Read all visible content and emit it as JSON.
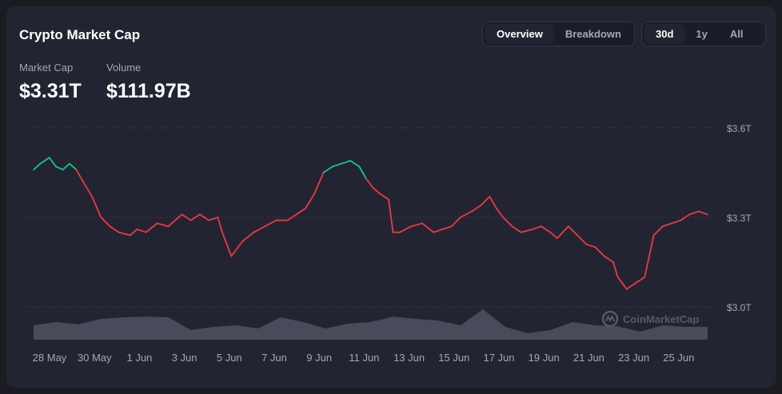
{
  "header": {
    "title": "Crypto Market Cap"
  },
  "metrics": [
    {
      "label": "Market Cap",
      "value": "$3.31T"
    },
    {
      "label": "Volume",
      "value": "$111.97B"
    }
  ],
  "view_tabs": {
    "overview": "Overview",
    "breakdown": "Breakdown",
    "active": "Overview"
  },
  "range_tabs": {
    "d30": "30d",
    "y1": "1y",
    "all": "All",
    "active": "30d"
  },
  "watermark": {
    "text": "CoinMarketCap",
    "icon": "coinmarketcap-logo-icon"
  },
  "colors": {
    "up": "#16c784",
    "down": "#ea3943",
    "volume": "#4e5261",
    "background": "#222531"
  },
  "chart_data": {
    "type": "line",
    "title": "",
    "xlabel": "",
    "ylabel": "",
    "y_axis": {
      "ticks": [
        "$3.6T",
        "$3.3T",
        "$3.0T"
      ],
      "tick_values": [
        3.6,
        3.3,
        3.0
      ],
      "range": [
        2.95,
        3.65
      ],
      "position": "right",
      "grid": "dotted"
    },
    "x_axis": {
      "ticks": [
        "28 May",
        "30 May",
        "1 Jun",
        "3 Jun",
        "5 Jun",
        "7 Jun",
        "9 Jun",
        "11 Jun",
        "13 Jun",
        "15 Jun",
        "17 Jun",
        "19 Jun",
        "21 Jun",
        "23 Jun",
        "25 Jun"
      ],
      "tick_days": [
        0,
        2,
        4,
        6,
        8,
        10,
        12,
        14,
        16,
        18,
        20,
        22,
        24,
        26,
        28
      ]
    },
    "baseline": 3.45,
    "series": [
      {
        "x": [
          0,
          0.3,
          0.7,
          1.0,
          1.3,
          1.6,
          1.9,
          2.2,
          2.6,
          3.0,
          3.4,
          3.8,
          4.3,
          4.6,
          5.0,
          5.5,
          6.0,
          6.6,
          7.0,
          7.4,
          7.8,
          8.2,
          8.4,
          8.8,
          9.3,
          9.8,
          10.3,
          10.8,
          11.3,
          11.7,
          12.1,
          12.5,
          12.9,
          13.3,
          13.7,
          14.1,
          14.5,
          14.8,
          15.1,
          15.4,
          15.8,
          16.0,
          16.3,
          16.8,
          17.3,
          17.8,
          18.2,
          18.6,
          19.0,
          19.5,
          19.9,
          20.3,
          20.6,
          20.9,
          21.3,
          21.7,
          22.2,
          22.6,
          23.0,
          23.3,
          23.8,
          24.2,
          24.6,
          25.0,
          25.4,
          25.8,
          26.0,
          26.4,
          26.8,
          27.2,
          27.6,
          28.0,
          28.4,
          28.8,
          29.2,
          29.6,
          30.0
        ],
        "y": [
          3.46,
          3.48,
          3.5,
          3.47,
          3.46,
          3.48,
          3.46,
          3.42,
          3.37,
          3.3,
          3.27,
          3.25,
          3.24,
          3.26,
          3.25,
          3.28,
          3.27,
          3.31,
          3.29,
          3.31,
          3.29,
          3.3,
          3.25,
          3.17,
          3.22,
          3.25,
          3.27,
          3.29,
          3.29,
          3.31,
          3.33,
          3.38,
          3.45,
          3.47,
          3.48,
          3.49,
          3.47,
          3.43,
          3.4,
          3.38,
          3.36,
          3.25,
          3.25,
          3.27,
          3.28,
          3.25,
          3.26,
          3.27,
          3.3,
          3.32,
          3.34,
          3.37,
          3.33,
          3.3,
          3.27,
          3.25,
          3.26,
          3.27,
          3.25,
          3.23,
          3.27,
          3.24,
          3.21,
          3.2,
          3.17,
          3.15,
          3.1,
          3.06,
          3.08,
          3.1,
          3.24,
          3.27,
          3.28,
          3.29,
          3.31,
          3.32,
          3.31
        ]
      },
      {
        "name": "Volume",
        "x": [
          0,
          1,
          2,
          3,
          4,
          5,
          6,
          7,
          8,
          9,
          10,
          11,
          12,
          13,
          14,
          15,
          16,
          17,
          18,
          19,
          20,
          21,
          22,
          23,
          24,
          25,
          26,
          27,
          28,
          29,
          30
        ],
        "y": [
          0.45,
          0.55,
          0.48,
          0.65,
          0.7,
          0.72,
          0.7,
          0.3,
          0.4,
          0.45,
          0.35,
          0.7,
          0.55,
          0.35,
          0.5,
          0.55,
          0.72,
          0.65,
          0.6,
          0.45,
          0.95,
          0.4,
          0.2,
          0.3,
          0.55,
          0.45,
          0.42,
          0.25,
          0.45,
          0.4,
          0.4
        ]
      }
    ]
  }
}
